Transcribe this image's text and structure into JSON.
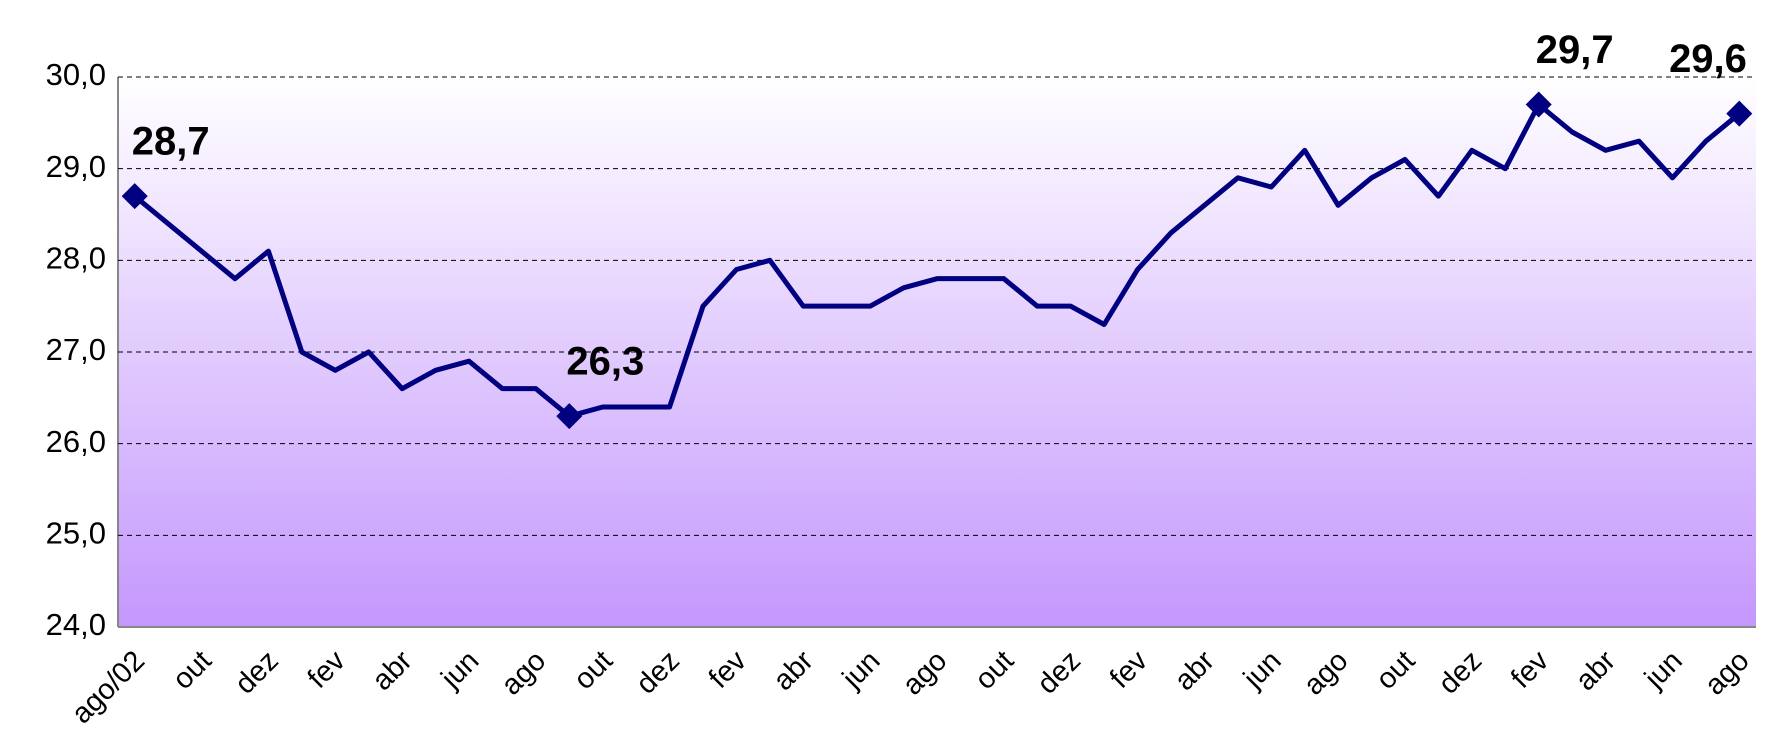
{
  "chart_data": {
    "type": "line",
    "categories": [
      "ago/02",
      null,
      "out",
      null,
      "dez",
      null,
      "fev",
      null,
      "abr",
      null,
      "jun",
      null,
      "ago",
      null,
      "out",
      null,
      "dez",
      null,
      "fev",
      null,
      "abr",
      null,
      "jun",
      null,
      "ago",
      null,
      "out",
      null,
      "dez",
      null,
      "fev",
      null,
      "abr",
      null,
      "jun",
      null,
      "ago",
      null,
      "out",
      null,
      "dez",
      null,
      "fev",
      null,
      "abr",
      null,
      "jun",
      null,
      "ago"
    ],
    "series": [
      {
        "color": "#000080",
        "values": [
          28.7,
          28.4,
          28.1,
          27.8,
          28.1,
          27.0,
          26.8,
          27.0,
          26.6,
          26.8,
          26.9,
          26.6,
          26.6,
          26.3,
          26.4,
          26.4,
          26.4,
          27.5,
          27.9,
          28.0,
          27.5,
          27.5,
          27.5,
          27.7,
          27.8,
          27.8,
          27.8,
          27.5,
          27.5,
          27.3,
          27.9,
          28.3,
          28.6,
          28.9,
          28.8,
          29.2,
          28.6,
          28.9,
          29.1,
          28.7,
          29.2,
          29.0,
          29.7,
          29.4,
          29.2,
          29.3,
          28.9,
          29.3,
          29.6
        ],
        "value_labels": [
          "28,7",
          null,
          null,
          null,
          null,
          null,
          null,
          null,
          null,
          null,
          null,
          null,
          null,
          "26,3",
          null,
          null,
          null,
          null,
          null,
          null,
          null,
          null,
          null,
          null,
          null,
          null,
          null,
          null,
          null,
          null,
          null,
          null,
          null,
          null,
          null,
          null,
          null,
          null,
          null,
          null,
          null,
          null,
          "29,7",
          null,
          null,
          null,
          null,
          null,
          "29,6"
        ]
      }
    ],
    "ylim": [
      24,
      30
    ],
    "yticks": [
      {
        "value": 24,
        "label": "24,0"
      },
      {
        "value": 25,
        "label": "25,0"
      },
      {
        "value": 26,
        "label": "26,0"
      },
      {
        "value": 27,
        "label": "27,0"
      },
      {
        "value": 28,
        "label": "28,0"
      },
      {
        "value": 29,
        "label": "29,0"
      },
      {
        "value": 30,
        "label": "30,0"
      }
    ],
    "grid": true
  }
}
